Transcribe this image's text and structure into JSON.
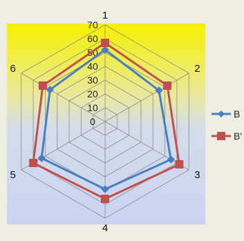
{
  "chart_data": {
    "type": "radar",
    "categories": [
      "1",
      "2",
      "3",
      "4",
      "5",
      "6"
    ],
    "r_ticks": [
      0,
      10,
      20,
      30,
      40,
      50,
      60,
      70
    ],
    "r_max": 70,
    "grid": true,
    "legend_position": "right",
    "series": [
      {
        "name": "B",
        "color": "#4a7ec4",
        "marker": "diamond",
        "values": [
          52,
          45,
          55,
          49,
          53,
          46
        ]
      },
      {
        "name": "B'",
        "color": "#c0504d",
        "marker": "square",
        "values": [
          57,
          52,
          62,
          56,
          60,
          52
        ]
      }
    ]
  }
}
